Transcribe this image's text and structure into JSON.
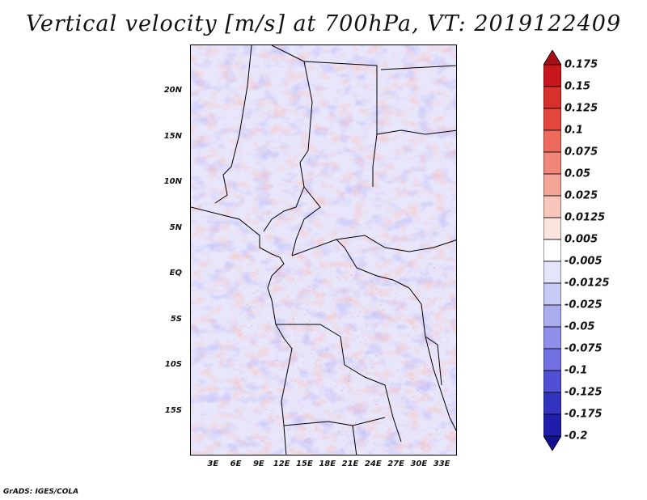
{
  "title": "Vertical velocity [m/s] at 700hPa, VT: 2019122409",
  "credit": "GrADS: IGES/COLA",
  "lat_labels": [
    {
      "text": "20N",
      "lat": 20
    },
    {
      "text": "15N",
      "lat": 15
    },
    {
      "text": "10N",
      "lat": 10
    },
    {
      "text": "5N",
      "lat": 5
    },
    {
      "text": "EQ",
      "lat": 0
    },
    {
      "text": "5S",
      "lat": -5
    },
    {
      "text": "10S",
      "lat": -10
    },
    {
      "text": "15S",
      "lat": -15
    }
  ],
  "lon_labels": [
    {
      "text": "3E",
      "lon": 3
    },
    {
      "text": "6E",
      "lon": 6
    },
    {
      "text": "9E",
      "lon": 9
    },
    {
      "text": "12E",
      "lon": 12
    },
    {
      "text": "15E",
      "lon": 15
    },
    {
      "text": "18E",
      "lon": 18
    },
    {
      "text": "21E",
      "lon": 21
    },
    {
      "text": "24E",
      "lon": 24
    },
    {
      "text": "27E",
      "lon": 27
    },
    {
      "text": "30E",
      "lon": 30
    },
    {
      "text": "33E",
      "lon": 33
    }
  ],
  "map_extent": {
    "lon_min": 0,
    "lon_max": 35,
    "lat_min": -20,
    "lat_max": 25
  },
  "colorbar": {
    "labels": [
      "0.175",
      "0.15",
      "0.125",
      "0.1",
      "0.075",
      "0.05",
      "0.025",
      "0.0125",
      "0.005",
      "-0.005",
      "-0.0125",
      "-0.025",
      "-0.05",
      "-0.075",
      "-0.1",
      "-0.125",
      "-0.175",
      "-0.2"
    ],
    "colors": [
      "#a50f15",
      "#c8161d",
      "#d7302d",
      "#e3463d",
      "#ec6a5c",
      "#f0877a",
      "#f5a598",
      "#f9c6bd",
      "#fbe3de",
      "#ffffff",
      "#e4e4fb",
      "#c9c9f5",
      "#ababf0",
      "#8f8fea",
      "#7070e0",
      "#5050d2",
      "#3333bf",
      "#1e1eaa",
      "#12128f"
    ]
  }
}
